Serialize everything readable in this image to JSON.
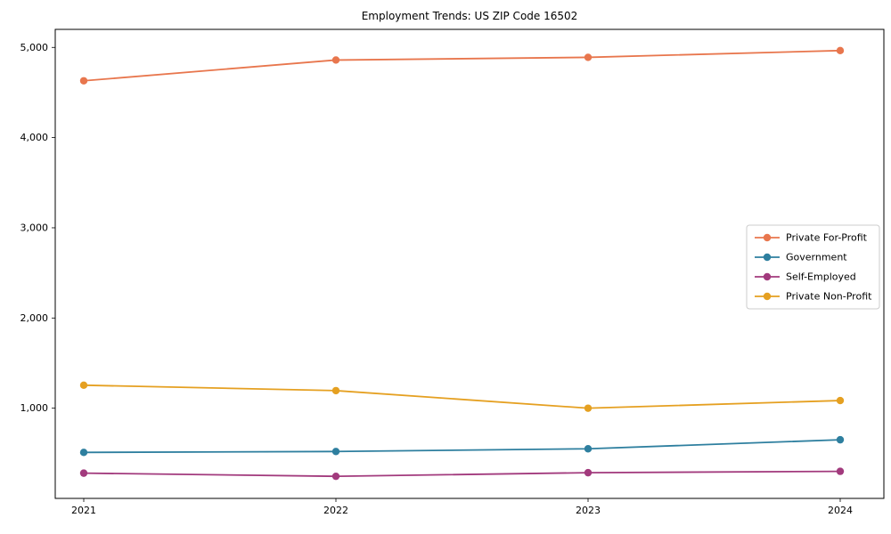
{
  "chart_data": {
    "type": "line",
    "title": "Employment Trends: US ZIP Code 16502",
    "x": [
      2021,
      2022,
      2023,
      2024
    ],
    "x_labels": [
      "2021",
      "2022",
      "2023",
      "2024"
    ],
    "xlabel": "",
    "ylabel": "",
    "ylim": [
      0,
      5200
    ],
    "yticks": [
      1000,
      2000,
      3000,
      4000,
      5000
    ],
    "ytick_labels": [
      "1,000",
      "2,000",
      "3,000",
      "4,000",
      "5,000"
    ],
    "grid": false,
    "legend_position": "center-right",
    "series": [
      {
        "name": "Private For-Profit",
        "color": "#e8764d",
        "values": [
          4630,
          4860,
          4890,
          4965
        ]
      },
      {
        "name": "Government",
        "color": "#2e7f9f",
        "values": [
          510,
          520,
          550,
          650
        ]
      },
      {
        "name": "Self-Employed",
        "color": "#a23a7d",
        "values": [
          280,
          245,
          285,
          300
        ]
      },
      {
        "name": "Private Non-Profit",
        "color": "#e5a021",
        "values": [
          1255,
          1195,
          1000,
          1085
        ]
      }
    ]
  }
}
